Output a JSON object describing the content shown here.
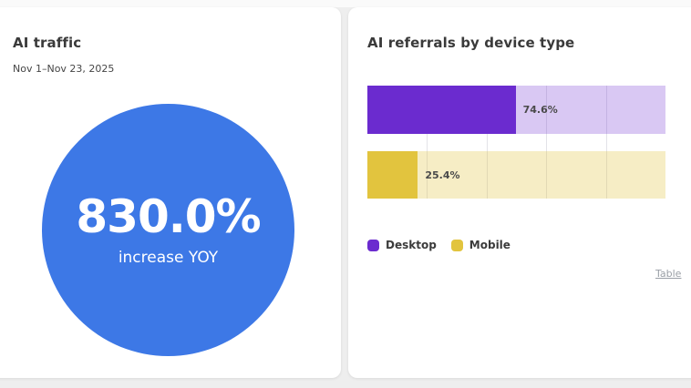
{
  "page": {
    "background": "#eeeeee"
  },
  "left_card": {
    "title": "AI traffic",
    "date_range": "Nov 1–Nov 23, 2025",
    "metric": {
      "value": "830.0%",
      "label": "increase YOY"
    },
    "circle_color": "#3d78e6"
  },
  "right_card": {
    "title": "AI referrals by device type",
    "table_link_label": "Table"
  },
  "chart_data": {
    "type": "bar",
    "orientation": "horizontal",
    "title": "AI referrals by device type",
    "categories": [
      "Desktop",
      "Mobile"
    ],
    "values": [
      74.6,
      25.4
    ],
    "value_labels": [
      "74.6%",
      "25.4%"
    ],
    "unit": "%",
    "xlim": [
      0,
      150
    ],
    "grid": true,
    "gridline_positions_pct": [
      20,
      40,
      60,
      80
    ],
    "colors": [
      "#6b2bcf",
      "#e2c43e"
    ],
    "track_colors": [
      "rgba(107,43,207,0.26)",
      "rgba(226,196,62,0.30)"
    ],
    "legend": {
      "position": "bottom-left",
      "items": [
        {
          "label": "Desktop",
          "color": "#6b2bcf"
        },
        {
          "label": "Mobile",
          "color": "#e2c43e"
        }
      ]
    }
  }
}
